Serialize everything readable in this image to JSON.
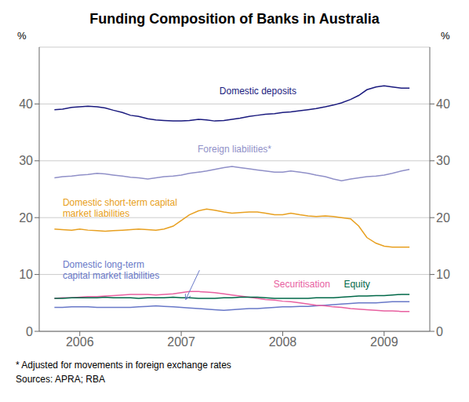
{
  "chart_data": {
    "type": "line",
    "title": "Funding Composition of Banks in Australia",
    "ylabel": "%",
    "y2label": "%",
    "annotations": [
      "* Adjusted for movements in foreign exchange rates",
      "Sources: APRA; RBA"
    ],
    "grid": true,
    "xlim": [
      2005.6,
      2009.45
    ],
    "xticks": [
      2006,
      2007,
      2008,
      2009
    ],
    "ylim": [
      0,
      50
    ],
    "yticks": [
      0,
      10,
      20,
      30,
      40
    ],
    "y2lim": [
      0,
      50
    ],
    "y2ticks": [
      0,
      10,
      20,
      30,
      40
    ],
    "x": [
      2005.75,
      2005.83,
      2005.92,
      2006.0,
      2006.08,
      2006.17,
      2006.25,
      2006.33,
      2006.42,
      2006.5,
      2006.58,
      2006.67,
      2006.75,
      2006.83,
      2006.92,
      2007.0,
      2007.08,
      2007.17,
      2007.25,
      2007.33,
      2007.42,
      2007.5,
      2007.58,
      2007.67,
      2007.75,
      2007.83,
      2007.92,
      2008.0,
      2008.08,
      2008.17,
      2008.25,
      2008.33,
      2008.42,
      2008.5,
      2008.58,
      2008.67,
      2008.75,
      2008.83,
      2008.92,
      2009.0,
      2009.08,
      2009.17,
      2009.25
    ],
    "series": [
      {
        "name": "Domestic deposits",
        "color": "#1a1a7e",
        "values": [
          39.0,
          39.1,
          39.4,
          39.5,
          39.6,
          39.5,
          39.3,
          38.9,
          38.5,
          38.0,
          37.8,
          37.4,
          37.2,
          37.1,
          37.0,
          37.0,
          37.1,
          37.3,
          37.2,
          37.0,
          37.1,
          37.3,
          37.5,
          37.8,
          38.0,
          38.2,
          38.3,
          38.5,
          38.6,
          38.8,
          39.0,
          39.2,
          39.5,
          39.8,
          40.2,
          40.8,
          41.5,
          42.5,
          43.0,
          43.2,
          43.0,
          42.8,
          42.8
        ]
      },
      {
        "name": "Foreign liabilities*",
        "color": "#9090c8",
        "values": [
          27.0,
          27.2,
          27.3,
          27.5,
          27.6,
          27.8,
          27.7,
          27.5,
          27.3,
          27.1,
          27.0,
          26.8,
          27.0,
          27.2,
          27.3,
          27.5,
          27.8,
          28.0,
          28.2,
          28.5,
          28.8,
          29.0,
          28.8,
          28.6,
          28.4,
          28.2,
          28.0,
          28.0,
          28.2,
          28.0,
          27.8,
          27.5,
          27.2,
          26.8,
          26.5,
          26.8,
          27.0,
          27.2,
          27.3,
          27.5,
          27.8,
          28.2,
          28.5
        ]
      },
      {
        "name": "Domestic short-term capital\nmarket liabilities",
        "color": "#e8a020",
        "values": [
          18.0,
          17.9,
          17.8,
          18.0,
          17.8,
          17.7,
          17.6,
          17.7,
          17.8,
          17.9,
          18.0,
          17.9,
          17.8,
          18.0,
          18.5,
          19.5,
          20.5,
          21.2,
          21.5,
          21.3,
          21.0,
          20.8,
          20.9,
          21.0,
          21.0,
          20.8,
          20.5,
          20.5,
          20.8,
          20.5,
          20.3,
          20.2,
          20.3,
          20.2,
          20.0,
          19.8,
          18.5,
          16.5,
          15.5,
          15.0,
          14.8,
          14.8,
          14.8
        ]
      },
      {
        "name": "Domestic long-term\ncapital market liabilities",
        "color": "#6878c8",
        "values": [
          4.2,
          4.2,
          4.3,
          4.3,
          4.3,
          4.2,
          4.2,
          4.2,
          4.2,
          4.2,
          4.3,
          4.4,
          4.5,
          4.4,
          4.3,
          4.2,
          4.1,
          4.0,
          3.9,
          3.8,
          3.7,
          3.8,
          3.9,
          4.0,
          4.0,
          4.1,
          4.2,
          4.3,
          4.3,
          4.4,
          4.4,
          4.5,
          4.6,
          4.7,
          4.8,
          4.9,
          5.0,
          5.0,
          5.0,
          5.1,
          5.2,
          5.2,
          5.2
        ]
      },
      {
        "name": "Securitisation",
        "color": "#e860a0",
        "values": [
          5.8,
          5.9,
          5.9,
          6.0,
          6.1,
          6.1,
          6.2,
          6.3,
          6.4,
          6.5,
          6.5,
          6.5,
          6.4,
          6.5,
          6.6,
          6.8,
          7.0,
          7.0,
          6.9,
          6.8,
          6.6,
          6.4,
          6.2,
          6.0,
          5.8,
          5.6,
          5.5,
          5.3,
          5.2,
          5.0,
          4.8,
          4.6,
          4.5,
          4.3,
          4.2,
          4.0,
          3.9,
          3.8,
          3.7,
          3.6,
          3.6,
          3.5,
          3.5
        ]
      },
      {
        "name": "Equity",
        "color": "#006848",
        "values": [
          5.8,
          5.8,
          5.9,
          5.9,
          5.9,
          5.9,
          6.0,
          5.9,
          5.9,
          5.9,
          5.8,
          5.9,
          5.9,
          5.9,
          6.0,
          5.9,
          5.9,
          5.8,
          5.8,
          5.8,
          5.9,
          5.9,
          6.0,
          6.0,
          6.0,
          5.9,
          5.8,
          5.8,
          5.8,
          5.8,
          5.8,
          5.9,
          5.9,
          5.9,
          6.0,
          6.1,
          6.2,
          6.2,
          6.3,
          6.3,
          6.4,
          6.5,
          6.5
        ]
      }
    ]
  }
}
